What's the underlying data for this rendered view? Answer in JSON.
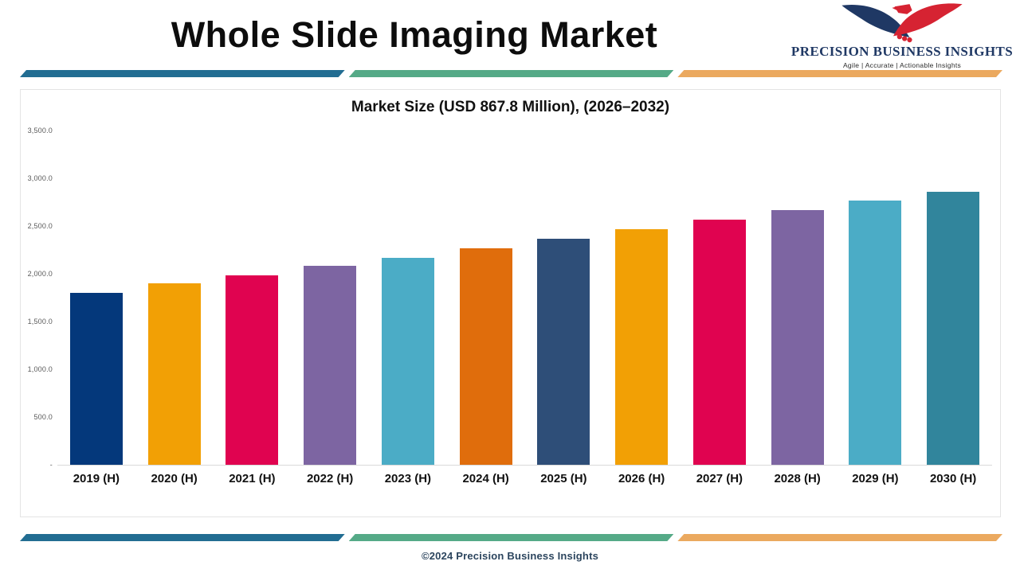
{
  "header": {
    "title": "Whole Slide Imaging Market",
    "logo": {
      "name": "PRECISION BUSINESS INSIGHTS",
      "tagline": "Agile | Accurate | Actionable Insights",
      "eagle_colors": {
        "navy": "#1f3864",
        "red": "#d62332"
      }
    }
  },
  "ribbon": {
    "colors": [
      "#226d92",
      "#55aa87",
      "#eba95f"
    ]
  },
  "chart_data": {
    "type": "bar",
    "title": "Market Size (USD 867.8 Million), (2026–2032)",
    "categories": [
      "2019 (H)",
      "2020 (H)",
      "2021 (H)",
      "2022 (H)",
      "2023 (H)",
      "2024 (H)",
      "2025 (H)",
      "2026 (H)",
      "2027 (H)",
      "2028 (H)",
      "2029 (H)",
      "2030 (H)"
    ],
    "values": [
      1800,
      1900,
      1980,
      2080,
      2170,
      2270,
      2370,
      2465,
      2565,
      2665,
      2765,
      2855
    ],
    "bar_colors": [
      "#04387b",
      "#f2a005",
      "#e00350",
      "#7d65a2",
      "#4bacc6",
      "#e06d0c",
      "#2e4e78",
      "#f2a005",
      "#e00350",
      "#7d65a2",
      "#4bacc6",
      "#31859c"
    ],
    "xlabel": "",
    "ylabel": "",
    "ylim": [
      0,
      3500
    ],
    "ytick_labels": [
      "3,500.0",
      "3,000.0",
      "2,500.0",
      "2,000.0",
      "1,500.0",
      "1,000.0",
      "500.0",
      "-"
    ],
    "ytick_values": [
      3500,
      3000,
      2500,
      2000,
      1500,
      1000,
      500,
      0
    ],
    "grid": false,
    "legend_position": "none"
  },
  "footer": {
    "copyright": "©2024 Precision Business Insights"
  }
}
